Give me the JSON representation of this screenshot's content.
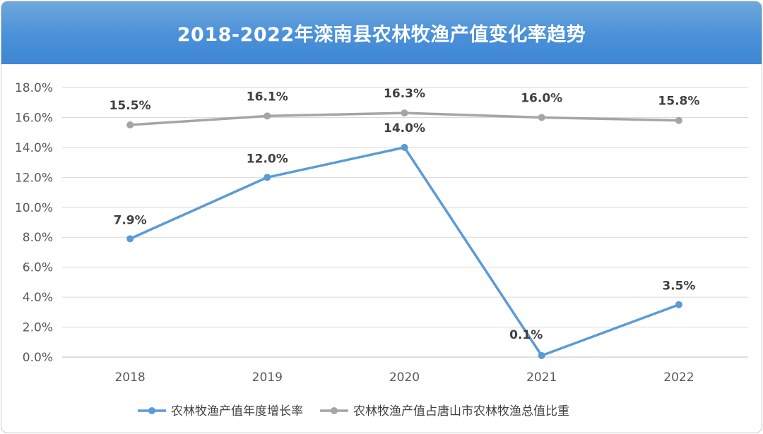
{
  "chart_data": {
    "type": "line",
    "title": "2018-2022年滦南县农林牧渔产值变化率趋势",
    "categories": [
      "2018",
      "2019",
      "2020",
      "2021",
      "2022"
    ],
    "series": [
      {
        "name": "农林牧渔产值年度增长率",
        "values": [
          7.9,
          12.0,
          14.0,
          0.1,
          3.5
        ],
        "labels": [
          "7.9%",
          "12.0%",
          "14.0%",
          "0.1%",
          "3.5%"
        ],
        "color": "#5b9bd5"
      },
      {
        "name": "农林牧渔产值占唐山市农林牧渔总值比重",
        "values": [
          15.5,
          16.1,
          16.3,
          16.0,
          15.8
        ],
        "labels": [
          "15.5%",
          "16.1%",
          "16.3%",
          "16.0%",
          "15.8%"
        ],
        "color": "#a5a5a5"
      }
    ],
    "ylim": [
      0,
      18
    ],
    "yticks": [
      "0.0%",
      "2.0%",
      "4.0%",
      "6.0%",
      "8.0%",
      "10.0%",
      "12.0%",
      "14.0%",
      "16.0%",
      "18.0%"
    ],
    "grid": true,
    "legend_position": "bottom",
    "header_color": "#4a90d9"
  }
}
